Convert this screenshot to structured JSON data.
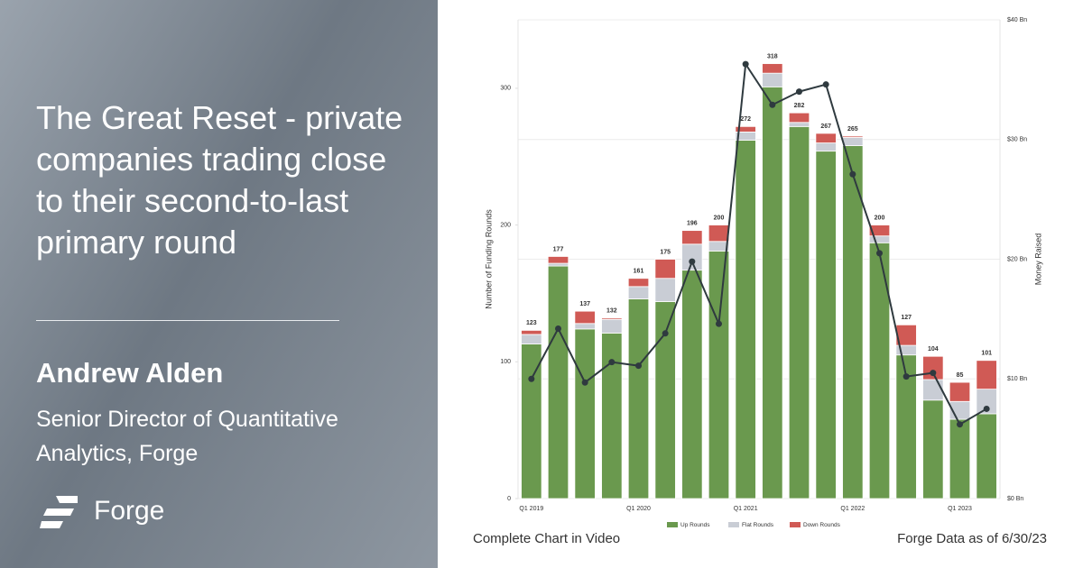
{
  "panel": {
    "headline": "The Great Reset - private companies trading close to their second-to-last primary round",
    "author": "Andrew Alden",
    "role": "Senior Director of Quantitative Analytics, Forge",
    "brand": "Forge"
  },
  "footer": {
    "left": "Complete Chart in Video",
    "right": "Forge Data as of 6/30/23"
  },
  "chart_data": {
    "type": "bar",
    "stacked": true,
    "ylabel": "Number of Funding Rounds",
    "y2label": "Money Raised",
    "categories": [
      "Q1 2019",
      null,
      null,
      null,
      "Q1 2020",
      null,
      null,
      null,
      "Q1 2021",
      null,
      null,
      null,
      "Q1 2022",
      null,
      null,
      null,
      "Q1 2023",
      null
    ],
    "series": [
      {
        "name": "Up Rounds",
        "color": "#6a994e",
        "values": [
          113,
          170,
          124,
          121,
          146,
          144,
          167,
          181,
          262,
          301,
          272,
          254,
          258,
          187,
          105,
          72,
          58,
          62
        ]
      },
      {
        "name": "Flat Rounds",
        "color": "#c9cdd5",
        "values": [
          7,
          2,
          4,
          10,
          9,
          17,
          19,
          7,
          6,
          10,
          3,
          6,
          6,
          5,
          7,
          15,
          13,
          18
        ]
      },
      {
        "name": "Down Rounds",
        "color": "#d05a55",
        "values": [
          3,
          5,
          9,
          1,
          6,
          14,
          10,
          12,
          4,
          7,
          7,
          7,
          1,
          8,
          15,
          17,
          14,
          21
        ]
      },
      {
        "type": "line",
        "axis": "y2",
        "color": "#2f3a3f",
        "values": [
          10,
          14.2,
          9.7,
          11.4,
          11.1,
          13.8,
          19.8,
          14.6,
          36.3,
          32.9,
          34,
          34.6,
          27.1,
          20.5,
          10.2,
          10.5,
          6.2,
          7.5
        ]
      }
    ],
    "totals": [
      123,
      177,
      137,
      132,
      161,
      175,
      196,
      200,
      272,
      318,
      282,
      267,
      265,
      200,
      127,
      104,
      85,
      101
    ],
    "ylim": [
      0,
      350
    ],
    "yticks": [
      0,
      100,
      200,
      300
    ],
    "y2lim": [
      0,
      40
    ],
    "y2ticks": [
      {
        "value": 0,
        "label": "$0 Bn"
      },
      {
        "value": 10,
        "label": "$10 Bn"
      },
      {
        "value": 20,
        "label": "$20 Bn"
      },
      {
        "value": 30,
        "label": "$30 Bn"
      },
      {
        "value": 40,
        "label": "$40 Bn"
      }
    ],
    "grid": true
  }
}
